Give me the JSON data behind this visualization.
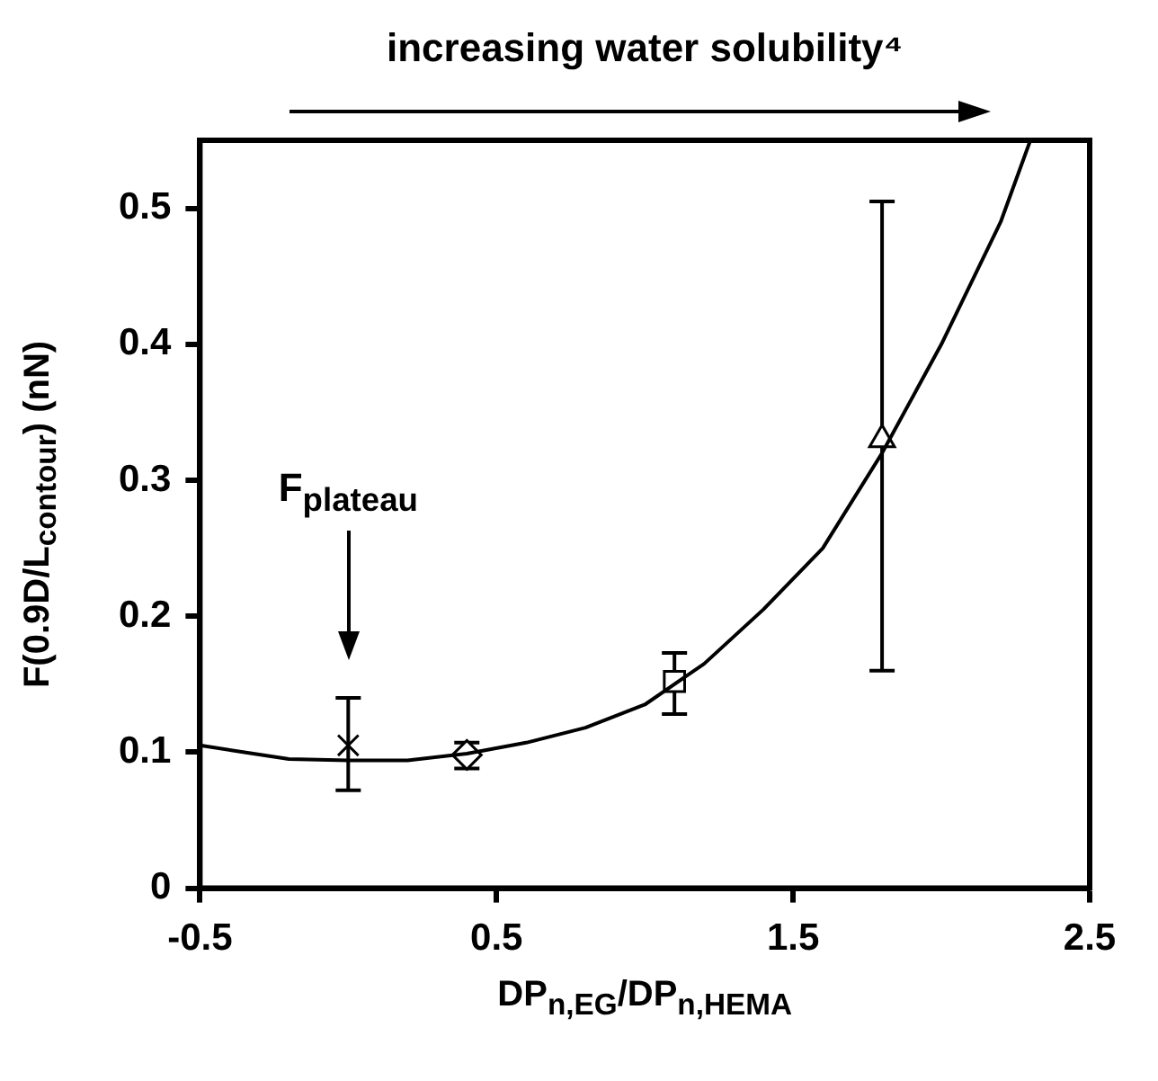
{
  "chart_data": {
    "type": "scatter",
    "title": "increasing water solubility⁴",
    "xlabel": "DP$_{n,EG}$/DP$_{n,HEMA}$",
    "ylabel": "F(0.9D/L$_{contour}$) (nN)",
    "xlim": [
      -0.5,
      2.5
    ],
    "xticks": [
      -0.5,
      0.5,
      1.5,
      2.5
    ],
    "ylim": [
      0,
      0.55
    ],
    "yticks": [
      0,
      0.1,
      0.2,
      0.3,
      0.4,
      0.5
    ],
    "annotations": [
      "F$_{plateau}$"
    ],
    "series": [
      {
        "type": "line",
        "marker": "none",
        "color": "#000000",
        "x": [
          -0.5,
          -0.35,
          -0.2,
          0,
          0.2,
          0.4,
          0.6,
          0.8,
          1.0,
          1.2,
          1.4,
          1.6,
          1.8,
          2.0,
          2.2,
          2.3
        ],
        "values": [
          0.105,
          0.1,
          0.095,
          0.094,
          0.094,
          0.099,
          0.107,
          0.118,
          0.135,
          0.165,
          0.205,
          0.25,
          0.32,
          0.4,
          0.49,
          0.55
        ]
      },
      {
        "marker": "cross",
        "color": "#000000",
        "x": [
          0
        ],
        "values": [
          0.105
        ],
        "errors": [
          [
            0.072,
            0.14
          ]
        ]
      },
      {
        "marker": "diamond",
        "color": "#000000",
        "x": [
          0.4
        ],
        "values": [
          0.098
        ],
        "errors": [
          [
            0.088,
            0.107
          ]
        ]
      },
      {
        "marker": "square",
        "color": "#000000",
        "x": [
          1.1
        ],
        "values": [
          0.152
        ],
        "errors": [
          [
            0.128,
            0.173
          ]
        ]
      },
      {
        "marker": "triangle",
        "color": "#000000",
        "x": [
          1.8
        ],
        "values": [
          0.33
        ],
        "errors": [
          [
            0.16,
            0.505
          ]
        ]
      }
    ]
  }
}
